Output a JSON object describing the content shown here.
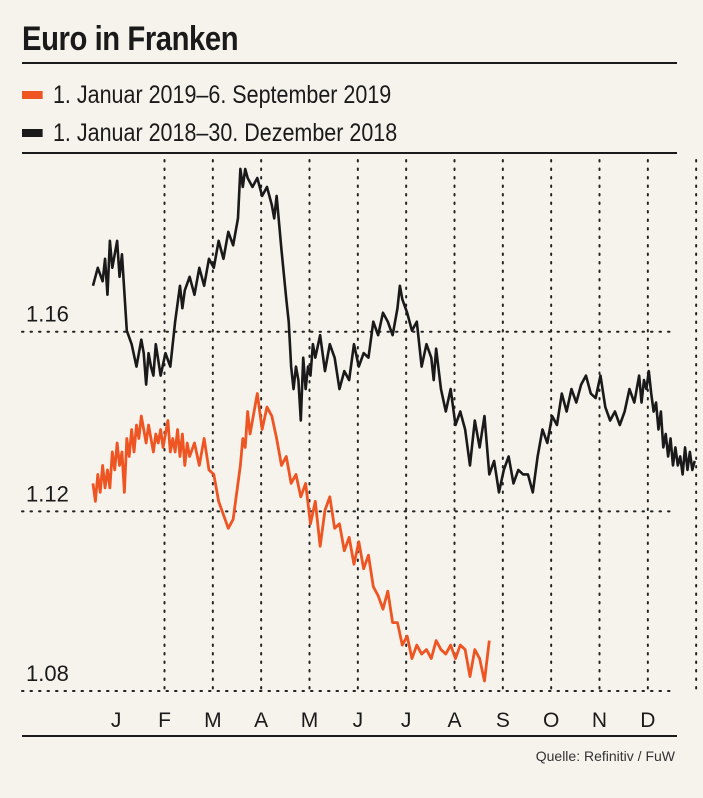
{
  "title": "Euro in Franken",
  "source": "Quelle: Refinitiv / FuW",
  "legend": [
    {
      "label": "1. Januar 2019–6. September 2019",
      "color": "#ee5522"
    },
    {
      "label": "1. Januar 2018–30. Dezember 2018",
      "color": "#1a1a1a"
    }
  ],
  "chart_data": {
    "type": "line",
    "title": "Euro in Franken",
    "xlabel": "",
    "ylabel": "",
    "categories": [
      "J",
      "F",
      "M",
      "A",
      "M",
      "J",
      "J",
      "A",
      "S",
      "O",
      "N",
      "D"
    ],
    "y_ticks": [
      "1.16",
      "1.12",
      "1.08"
    ],
    "y_tick_values": [
      1.16,
      1.12,
      1.08
    ],
    "ylim": [
      1.078,
      1.196
    ],
    "xlim": [
      0,
      12
    ],
    "grid": "dotted",
    "series": [
      {
        "name": "1. Januar 2018–30. Dezember 2018",
        "color": "#1a1a1a",
        "x": [
          0.0,
          0.1,
          0.2,
          0.25,
          0.3,
          0.35,
          0.4,
          0.45,
          0.5,
          0.55,
          0.6,
          0.7,
          0.8,
          0.9,
          1.0,
          1.05,
          1.1,
          1.15,
          1.2,
          1.25,
          1.3,
          1.4,
          1.5,
          1.6,
          1.7,
          1.8,
          1.85,
          1.9,
          2.0,
          2.1,
          2.2,
          2.3,
          2.4,
          2.5,
          2.6,
          2.7,
          2.8,
          2.9,
          3.0,
          3.05,
          3.1,
          3.15,
          3.2,
          3.3,
          3.4,
          3.5,
          3.6,
          3.7,
          3.75,
          3.8,
          3.85,
          3.9,
          4.0,
          4.05,
          4.1,
          4.15,
          4.2,
          4.25,
          4.3,
          4.35,
          4.4,
          4.45,
          4.5,
          4.55,
          4.6,
          4.7,
          4.8,
          4.9,
          5.0,
          5.1,
          5.2,
          5.3,
          5.4,
          5.5,
          5.6,
          5.7,
          5.8,
          5.9,
          6.0,
          6.1,
          6.2,
          6.3,
          6.35,
          6.4,
          6.5,
          6.6,
          6.7,
          6.8,
          6.9,
          7.0,
          7.05,
          7.1,
          7.2,
          7.3,
          7.4,
          7.5,
          7.6,
          7.7,
          7.8,
          7.9,
          8.0,
          8.1,
          8.2,
          8.3,
          8.4,
          8.5,
          8.6,
          8.7,
          8.8,
          8.9,
          9.0,
          9.1,
          9.2,
          9.3,
          9.4,
          9.5,
          9.6,
          9.7,
          9.8,
          9.9,
          10.0,
          10.1,
          10.2,
          10.3,
          10.4,
          10.5,
          10.6,
          10.7,
          10.8,
          10.9,
          11.0,
          11.1,
          11.2,
          11.3
        ],
        "y": [
          1.168,
          1.172,
          1.169,
          1.174,
          1.166,
          1.178,
          1.172,
          1.175,
          1.178,
          1.17,
          1.175,
          1.158,
          1.155,
          1.15,
          1.156,
          1.153,
          1.146,
          1.153,
          1.15,
          1.148,
          1.155,
          1.148,
          1.153,
          1.15,
          1.16,
          1.168,
          1.163,
          1.167,
          1.17,
          1.166,
          1.172,
          1.168,
          1.174,
          1.172,
          1.178,
          1.174,
          1.18,
          1.177,
          1.183,
          1.194,
          1.19,
          1.194,
          1.192,
          1.19,
          1.192,
          1.188,
          1.19,
          1.186,
          1.183,
          1.188,
          1.182,
          1.176,
          1.165,
          1.16,
          1.15,
          1.145,
          1.15,
          1.147,
          1.138,
          1.152,
          1.145,
          1.15,
          1.148,
          1.155,
          1.152,
          1.157,
          1.149,
          1.155,
          1.152,
          1.145,
          1.149,
          1.147,
          1.155,
          1.15,
          1.153,
          1.152,
          1.16,
          1.157,
          1.162,
          1.16,
          1.157,
          1.163,
          1.168,
          1.165,
          1.162,
          1.158,
          1.16,
          1.15,
          1.155,
          1.152,
          1.147,
          1.154,
          1.145,
          1.14,
          1.145,
          1.137,
          1.14,
          1.136,
          1.128,
          1.138,
          1.132,
          1.139,
          1.126,
          1.129,
          1.122,
          1.127,
          1.13,
          1.124,
          1.127,
          1.126,
          1.126,
          1.122,
          1.13,
          1.136,
          1.133,
          1.139,
          1.137,
          1.144,
          1.14,
          1.145,
          1.142,
          1.146,
          1.148,
          1.144,
          1.143,
          1.148,
          1.141,
          1.138,
          1.14,
          1.137,
          1.14,
          1.145,
          1.142,
          1.148
        ],
        "y_tail_dec": [
          1.142,
          1.147,
          1.145,
          1.149,
          1.144,
          1.14,
          1.142,
          1.136,
          1.14,
          1.132,
          1.135,
          1.13,
          1.134,
          1.128,
          1.132,
          1.128,
          1.13,
          1.126,
          1.132,
          1.127,
          1.131,
          1.127,
          1.129
        ]
      },
      {
        "name": "1. Januar 2019–6. September 2019",
        "color": "#ee5522",
        "x": [
          0.0,
          0.05,
          0.1,
          0.15,
          0.2,
          0.25,
          0.3,
          0.35,
          0.4,
          0.45,
          0.5,
          0.55,
          0.6,
          0.65,
          0.7,
          0.75,
          0.8,
          0.85,
          0.9,
          0.95,
          1.0,
          1.05,
          1.1,
          1.15,
          1.2,
          1.25,
          1.3,
          1.35,
          1.4,
          1.45,
          1.5,
          1.55,
          1.6,
          1.65,
          1.7,
          1.75,
          1.8,
          1.85,
          1.9,
          1.95,
          2.0,
          2.1,
          2.2,
          2.3,
          2.4,
          2.5,
          2.6,
          2.7,
          2.8,
          2.9,
          3.0,
          3.05,
          3.1,
          3.15,
          3.2,
          3.25,
          3.3,
          3.4,
          3.5,
          3.6,
          3.7,
          3.8,
          3.9,
          4.0,
          4.1,
          4.2,
          4.3,
          4.4,
          4.5,
          4.6,
          4.7,
          4.8,
          4.9,
          5.0,
          5.1,
          5.2,
          5.3,
          5.4,
          5.5,
          5.6,
          5.7,
          5.8,
          5.9,
          6.0,
          6.1,
          6.2,
          6.3,
          6.4,
          6.5,
          6.6,
          6.7,
          6.8,
          6.9,
          7.0,
          7.1,
          7.2,
          7.3,
          7.4,
          7.5,
          7.6,
          7.7,
          7.8,
          7.9,
          8.0,
          8.1,
          8.2
        ],
        "y": [
          1.124,
          1.12,
          1.126,
          1.122,
          1.128,
          1.123,
          1.127,
          1.123,
          1.131,
          1.127,
          1.133,
          1.128,
          1.131,
          1.122,
          1.134,
          1.13,
          1.136,
          1.131,
          1.137,
          1.134,
          1.139,
          1.136,
          1.133,
          1.137,
          1.134,
          1.131,
          1.135,
          1.133,
          1.136,
          1.132,
          1.135,
          1.138,
          1.131,
          1.134,
          1.131,
          1.136,
          1.13,
          1.135,
          1.128,
          1.133,
          1.13,
          1.133,
          1.128,
          1.134,
          1.127,
          1.126,
          1.12,
          1.117,
          1.114,
          1.116,
          1.124,
          1.128,
          1.134,
          1.132,
          1.14,
          1.135,
          1.138,
          1.144,
          1.136,
          1.141,
          1.139,
          1.134,
          1.128,
          1.13,
          1.124,
          1.126,
          1.121,
          1.124,
          1.115,
          1.12,
          1.11,
          1.118,
          1.121,
          1.114,
          1.115,
          1.109,
          1.112,
          1.106,
          1.111,
          1.105,
          1.108,
          1.101,
          1.099,
          1.096,
          1.1,
          1.093,
          1.093,
          1.088,
          1.09,
          1.085,
          1.088,
          1.086,
          1.087,
          1.085,
          1.089,
          1.087,
          1.086,
          1.088,
          1.085,
          1.088,
          1.087,
          1.081,
          1.087,
          1.085,
          1.08,
          1.089
        ]
      }
    ]
  }
}
